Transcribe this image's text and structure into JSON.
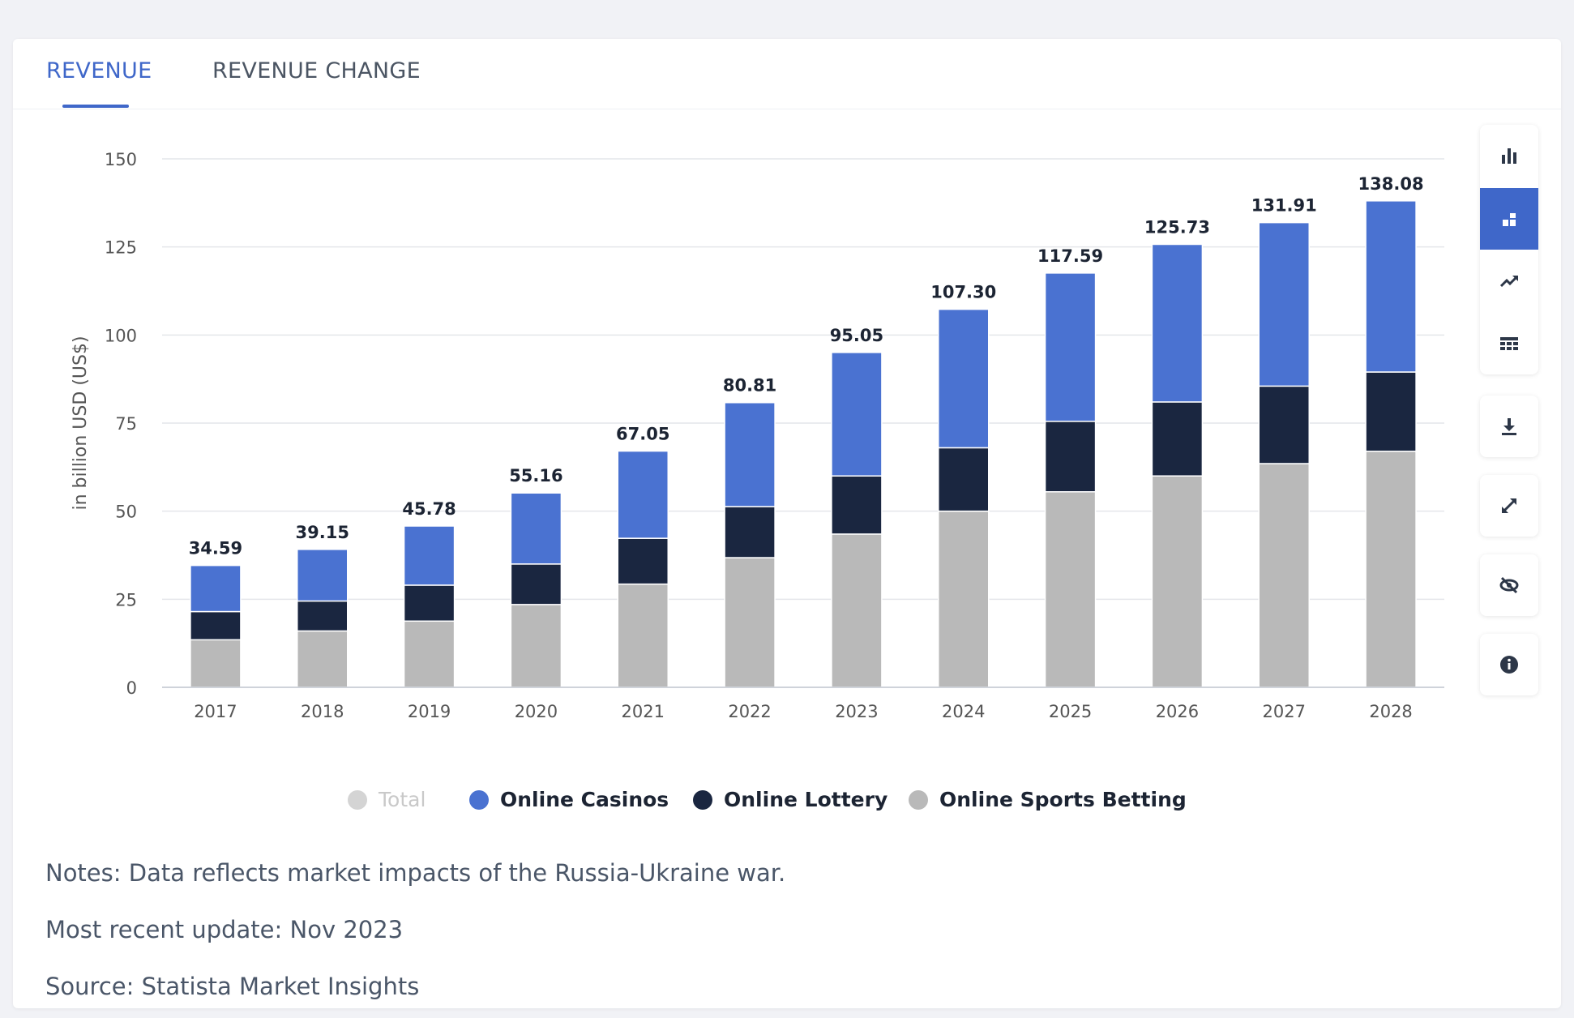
{
  "tabs": [
    {
      "label": "REVENUE",
      "active": true
    },
    {
      "label": "REVENUE CHANGE",
      "active": false
    }
  ],
  "colors": {
    "accent": "#3f67c9",
    "online_casinos": "#4a72d1",
    "online_lottery": "#1a2640",
    "online_sports_betting": "#b9b9b9",
    "total_disabled": "#d4d4d4"
  },
  "chart_data": {
    "type": "bar",
    "stacked": true,
    "categories": [
      "2017",
      "2018",
      "2019",
      "2020",
      "2021",
      "2022",
      "2023",
      "2024",
      "2025",
      "2026",
      "2027",
      "2028"
    ],
    "series": [
      {
        "name": "Online Sports Betting",
        "color": "#b9b9b9",
        "values": [
          13.5,
          16.0,
          18.8,
          23.5,
          29.3,
          36.8,
          43.5,
          50.0,
          55.5,
          60.0,
          63.5,
          67.0
        ]
      },
      {
        "name": "Online Lottery",
        "color": "#1a2640",
        "values": [
          8.0,
          8.5,
          10.2,
          11.5,
          13.0,
          14.5,
          16.5,
          18.0,
          20.0,
          21.0,
          22.0,
          22.5
        ]
      },
      {
        "name": "Online Casinos",
        "color": "#4a72d1",
        "values": [
          13.09,
          14.65,
          16.78,
          20.16,
          24.75,
          29.51,
          35.05,
          39.3,
          42.09,
          44.73,
          46.41,
          48.58
        ]
      }
    ],
    "totals": [
      "34.59",
      "39.15",
      "45.78",
      "55.16",
      "67.05",
      "80.81",
      "95.05",
      "107.30",
      "117.59",
      "125.73",
      "131.91",
      "138.08"
    ],
    "ylabel": "in billion USD (US$)",
    "ylim": [
      0,
      150
    ],
    "yticks": [
      "0",
      "25",
      "50",
      "75",
      "100",
      "125",
      "150"
    ],
    "grid": true,
    "legend_position": "bottom"
  },
  "legend": [
    {
      "label": "Total",
      "color": "#d4d4d4",
      "disabled": true
    },
    {
      "label": "Online Casinos",
      "color": "#4a72d1",
      "disabled": false
    },
    {
      "label": "Online Lottery",
      "color": "#1a2640",
      "disabled": false
    },
    {
      "label": "Online Sports Betting",
      "color": "#b9b9b9",
      "disabled": false
    }
  ],
  "notes": {
    "note": "Notes: Data reflects market impacts of the Russia-Ukraine war.",
    "update": "Most recent update: Nov 2023",
    "source": "Source: Statista Market Insights"
  },
  "toolbar": {
    "icons": [
      "bar-chart-icon",
      "stacked-bar-icon",
      "line-chart-icon",
      "table-icon",
      "download-icon",
      "fullscreen-icon",
      "hide-icon",
      "info-icon"
    ],
    "active": "stacked-bar-icon"
  }
}
